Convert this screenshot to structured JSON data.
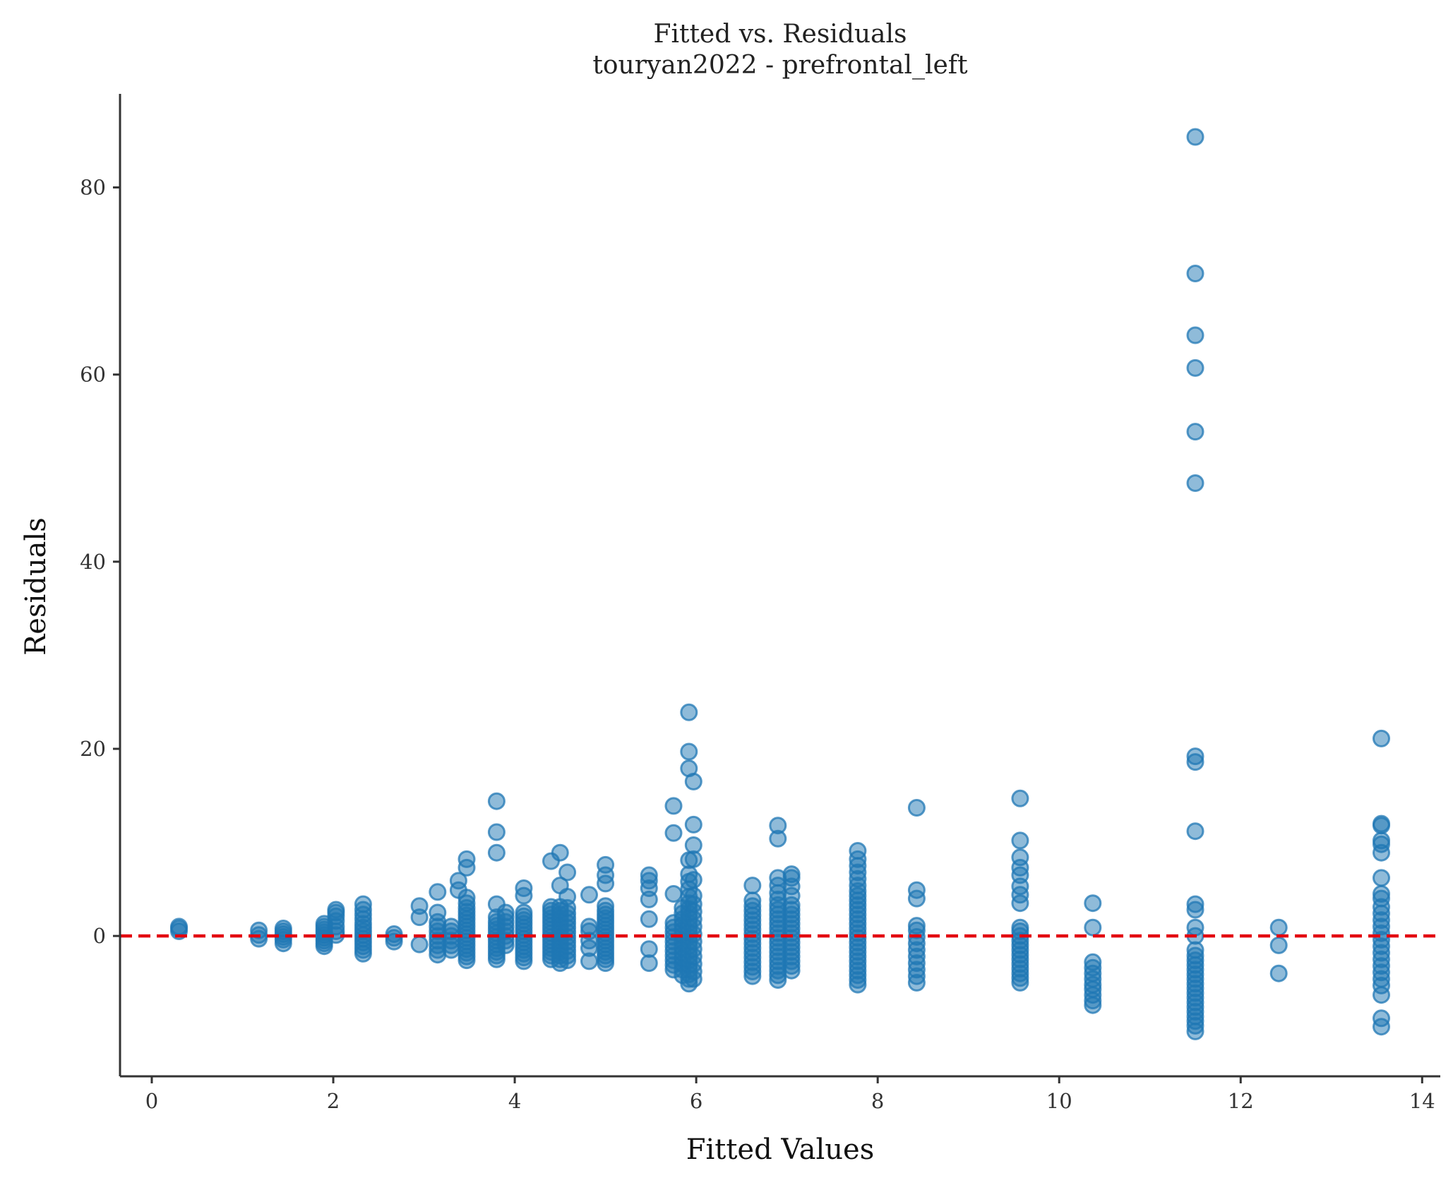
{
  "chart_data": {
    "type": "scatter",
    "title": "Fitted vs. Residuals",
    "subtitle": "touryan2022 - prefrontal_left",
    "xlabel": "Fitted Values",
    "ylabel": "Residuals",
    "xlim": [
      -0.35,
      14.2
    ],
    "ylim": [
      -15,
      90
    ],
    "xticks": [
      0,
      2,
      4,
      6,
      8,
      10,
      12,
      14
    ],
    "yticks": [
      0,
      20,
      40,
      60,
      80
    ],
    "grid": false,
    "legend": "none",
    "point_color": "#1f77b4",
    "reference_line": {
      "y": 0,
      "color": "#e3000f",
      "style": "dashed"
    },
    "clusters": [
      {
        "x": 0.3,
        "y": [
          0.5,
          0.8,
          1.0
        ]
      },
      {
        "x": 1.18,
        "y": [
          -0.3,
          0.1,
          0.6
        ]
      },
      {
        "x": 1.45,
        "y": [
          -0.8,
          -0.4,
          -0.1,
          0.2,
          0.5,
          0.8
        ]
      },
      {
        "x": 1.9,
        "y": [
          -1.1,
          -0.8,
          -0.5,
          -0.2,
          0.1,
          0.4,
          0.7,
          1.0,
          1.3
        ]
      },
      {
        "x": 2.03,
        "y": [
          0.1,
          0.5,
          1.0,
          1.6,
          2.1,
          2.5,
          2.8
        ]
      },
      {
        "x": 2.33,
        "y": [
          -1.9,
          -1.5,
          -1.1,
          -0.7,
          -0.3,
          0.1,
          0.5,
          0.9,
          1.3,
          1.8,
          2.3,
          2.8,
          3.4
        ]
      },
      {
        "x": 2.67,
        "y": [
          -0.6,
          -0.2,
          0.2
        ]
      },
      {
        "x": 2.95,
        "y": [
          -0.9,
          2.0,
          3.2
        ]
      },
      {
        "x": 3.15,
        "y": [
          -2.0,
          -1.5,
          -1.0,
          -0.5,
          0.0,
          0.5,
          1.0,
          1.5,
          2.5,
          4.7
        ]
      },
      {
        "x": 3.3,
        "y": [
          -1.5,
          -1.0,
          -0.5,
          0.0,
          0.5,
          1.0
        ]
      },
      {
        "x": 3.38,
        "y": [
          5.9,
          4.9
        ]
      },
      {
        "x": 3.47,
        "y": [
          -2.6,
          -2.2,
          -1.8,
          -1.4,
          -1.0,
          -0.6,
          -0.2,
          0.2,
          0.6,
          1.0,
          1.4,
          1.8,
          2.2,
          2.6,
          3.0,
          3.5,
          4.1,
          7.3,
          8.2
        ]
      },
      {
        "x": 3.8,
        "y": [
          -2.5,
          -2.1,
          -1.7,
          -1.3,
          -0.9,
          -0.5,
          -0.1,
          0.3,
          0.7,
          1.1,
          1.5,
          2.0,
          3.4,
          8.9,
          11.1,
          14.4
        ]
      },
      {
        "x": 3.9,
        "y": [
          -1.0,
          -0.5,
          0.0,
          0.5,
          1.0,
          1.5,
          2.0,
          2.5
        ]
      },
      {
        "x": 4.1,
        "y": [
          -2.7,
          -2.3,
          -1.9,
          -1.5,
          -1.1,
          -0.7,
          -0.3,
          0.1,
          0.5,
          0.9,
          1.3,
          1.7,
          2.1,
          2.5,
          4.3,
          5.1
        ]
      },
      {
        "x": 4.4,
        "y": [
          -2.5,
          -2.1,
          -1.7,
          -1.3,
          -0.9,
          -0.5,
          -0.1,
          0.3,
          0.7,
          1.1,
          1.5,
          1.9,
          2.3,
          2.7,
          3.1,
          8.0
        ]
      },
      {
        "x": 4.5,
        "y": [
          -2.9,
          -2.5,
          -2.1,
          -1.7,
          -1.3,
          -0.9,
          -0.5,
          -0.1,
          0.3,
          0.7,
          1.1,
          1.5,
          1.9,
          2.3,
          2.7,
          3.1,
          5.4,
          8.9
        ]
      },
      {
        "x": 4.58,
        "y": [
          -2.6,
          -2.1,
          -1.6,
          -1.1,
          -0.6,
          -0.1,
          0.4,
          0.9,
          1.4,
          1.9,
          2.4,
          3.0,
          4.2,
          6.8
        ]
      },
      {
        "x": 4.82,
        "y": [
          -2.7,
          -1.3,
          -0.5,
          0.5,
          1.0,
          4.4
        ]
      },
      {
        "x": 5.0,
        "y": [
          -2.9,
          -2.5,
          -2.1,
          -1.7,
          -1.3,
          -0.9,
          -0.5,
          -0.1,
          0.3,
          0.7,
          1.1,
          1.5,
          1.9,
          2.3,
          2.7,
          3.2,
          5.6,
          6.5,
          7.6
        ]
      },
      {
        "x": 5.48,
        "y": [
          -2.9,
          -1.4,
          1.8,
          3.9,
          5.1,
          5.9,
          6.5
        ]
      },
      {
        "x": 5.75,
        "y": [
          -3.6,
          -3.1,
          -2.6,
          -2.1,
          -1.6,
          -1.1,
          -0.6,
          -0.1,
          0.4,
          0.9,
          1.4,
          4.5,
          11.0,
          13.9
        ]
      },
      {
        "x": 5.85,
        "y": [
          -4.2,
          -3.6,
          -3.0,
          -2.4,
          -1.8,
          -1.2,
          -0.6,
          0.0,
          0.6,
          1.2,
          1.8,
          2.4,
          3.0
        ]
      },
      {
        "x": 5.92,
        "y": [
          -5.1,
          -4.6,
          -4.1,
          -3.6,
          -3.1,
          -2.6,
          -2.1,
          -1.6,
          -1.1,
          -0.6,
          -0.1,
          0.4,
          0.9,
          1.4,
          1.9,
          2.4,
          2.9,
          3.5,
          4.2,
          5.0,
          5.8,
          6.6,
          8.1,
          17.9,
          19.7,
          23.9
        ]
      },
      {
        "x": 5.97,
        "y": [
          -4.6,
          -3.8,
          -3.0,
          -2.2,
          -1.4,
          -0.6,
          0.2,
          1.0,
          1.8,
          2.6,
          3.4,
          4.3,
          6.0,
          8.2,
          9.7,
          11.9,
          16.5
        ]
      },
      {
        "x": 6.62,
        "y": [
          -4.3,
          -3.8,
          -3.3,
          -2.8,
          -2.3,
          -1.8,
          -1.3,
          -0.8,
          -0.3,
          0.2,
          0.7,
          1.2,
          1.7,
          2.2,
          2.7,
          3.2,
          3.8,
          5.4
        ]
      },
      {
        "x": 6.9,
        "y": [
          -4.7,
          -4.2,
          -3.7,
          -3.2,
          -2.7,
          -2.2,
          -1.7,
          -1.2,
          -0.7,
          -0.2,
          0.3,
          0.8,
          1.3,
          1.8,
          2.3,
          2.8,
          3.3,
          3.9,
          4.6,
          5.4,
          6.2,
          10.4,
          11.8
        ]
      },
      {
        "x": 7.05,
        "y": [
          -3.7,
          -3.2,
          -2.7,
          -2.2,
          -1.7,
          -1.2,
          -0.7,
          -0.2,
          0.3,
          0.8,
          1.3,
          1.8,
          2.3,
          2.8,
          3.3,
          4.3,
          5.3,
          6.2,
          6.6
        ]
      },
      {
        "x": 7.78,
        "y": [
          -5.2,
          -4.7,
          -4.2,
          -3.7,
          -3.2,
          -2.7,
          -2.2,
          -1.7,
          -1.2,
          -0.7,
          -0.2,
          0.3,
          0.8,
          1.3,
          1.8,
          2.3,
          2.8,
          3.3,
          3.8,
          4.3,
          4.8,
          5.4,
          6.1,
          6.8,
          7.5,
          8.2,
          9.1
        ]
      },
      {
        "x": 8.43,
        "y": [
          -5.0,
          -4.3,
          -3.6,
          -2.9,
          -2.2,
          -1.5,
          -0.8,
          -0.1,
          0.6,
          1.1,
          4.0,
          4.9,
          13.7
        ]
      },
      {
        "x": 9.57,
        "y": [
          -5.0,
          -4.5,
          -4.0,
          -3.5,
          -3.0,
          -2.5,
          -2.0,
          -1.5,
          -1.0,
          -0.5,
          0.0,
          0.5,
          0.9,
          3.5,
          4.4,
          5.3,
          6.5,
          7.3,
          8.4,
          10.2,
          14.7
        ]
      },
      {
        "x": 10.37,
        "y": [
          -7.4,
          -6.9,
          -6.3,
          -5.7,
          -5.2,
          -4.6,
          -4.0,
          -3.4,
          -2.8,
          0.9,
          3.5
        ]
      },
      {
        "x": 11.5,
        "y": [
          -10.2,
          -9.6,
          -9.1,
          -8.6,
          -8.1,
          -7.6,
          -7.1,
          -6.6,
          -6.1,
          -5.6,
          -5.1,
          -4.6,
          -4.1,
          -3.6,
          -3.1,
          -2.6,
          -2.1,
          -1.5,
          0.0,
          0.9,
          2.8,
          3.4,
          11.2,
          18.6,
          19.2,
          48.4,
          53.9,
          60.7,
          64.2,
          70.8,
          85.4
        ]
      },
      {
        "x": 12.42,
        "y": [
          -4.0,
          -1.0,
          0.9
        ]
      },
      {
        "x": 13.55,
        "y": [
          -9.7,
          -8.8,
          -6.3,
          -5.3,
          -4.6,
          -3.9,
          -3.2,
          -2.5,
          -1.8,
          -1.1,
          -0.4,
          0.3,
          1.0,
          1.7,
          2.4,
          3.1,
          4.0,
          4.5,
          6.2,
          8.9,
          9.8,
          10.2,
          11.8,
          12.0,
          21.1
        ]
      }
    ]
  }
}
